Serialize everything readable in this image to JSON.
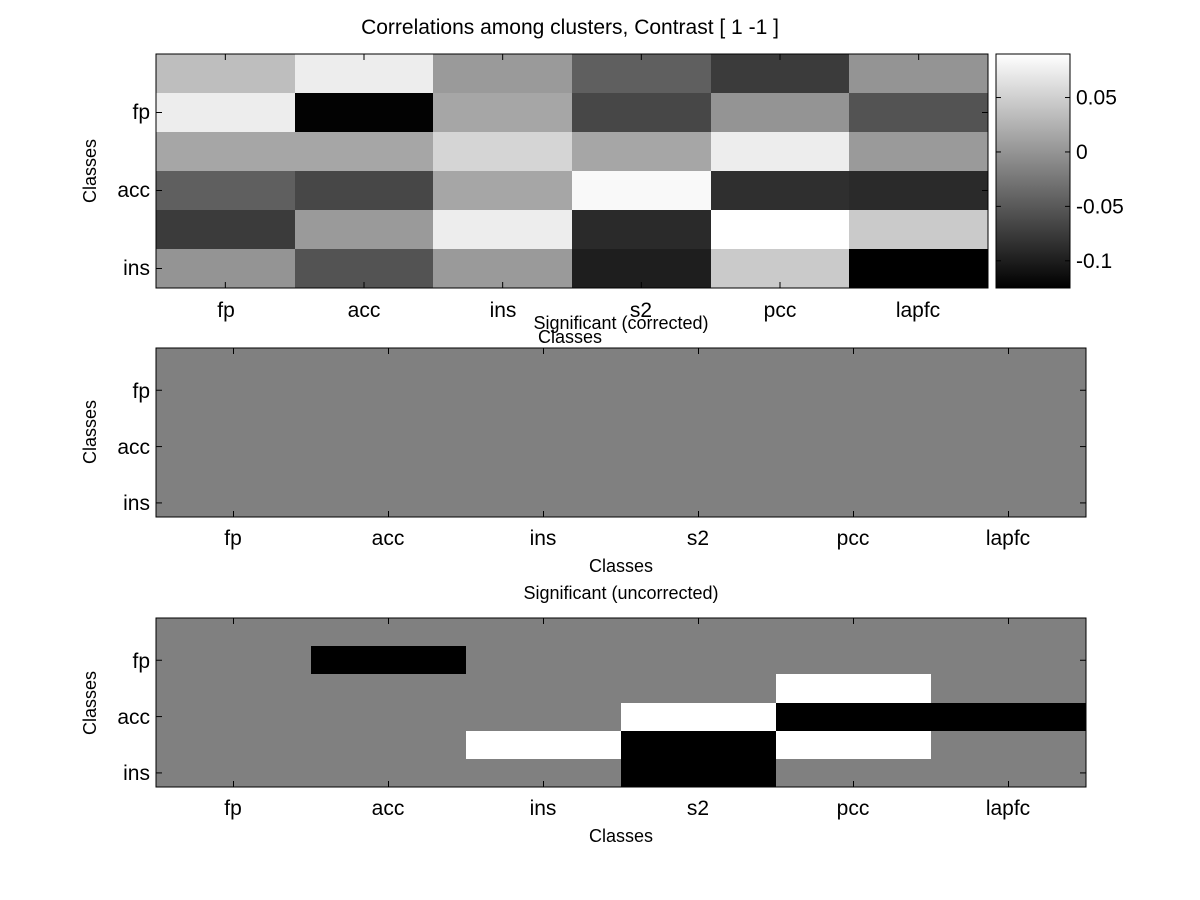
{
  "chart_data": [
    {
      "type": "heatmap",
      "title": "Correlations among clusters, Contrast [ 1 -1 ]",
      "xlabel": "Classes",
      "ylabel": "Classes",
      "x_ticks": [
        "fp",
        "acc",
        "ins",
        "s2",
        "pcc",
        "lapfc"
      ],
      "y_ticks": [
        "fp",
        "acc",
        "ins"
      ],
      "rows": 6,
      "cols": 6,
      "values": [
        [
          0.035,
          0.075,
          0.005,
          -0.045,
          -0.075,
          0.0
        ],
        [
          0.075,
          -0.123,
          0.015,
          -0.065,
          0.0,
          -0.055
        ],
        [
          0.015,
          0.015,
          0.055,
          0.015,
          0.075,
          0.005
        ],
        [
          -0.045,
          -0.065,
          0.015,
          0.085,
          -0.085,
          -0.09
        ],
        [
          -0.075,
          0.005,
          0.075,
          -0.09,
          0.09,
          0.045
        ],
        [
          0.0,
          -0.055,
          0.005,
          -0.1,
          0.045,
          -0.125
        ]
      ],
      "colorbar": {
        "range": [
          -0.125,
          0.09
        ],
        "ticks": [
          0.05,
          0,
          -0.05,
          -0.1
        ],
        "tick_labels": [
          "0.05",
          "0",
          "-0.05",
          "-0.1"
        ]
      },
      "colormap": "gray"
    },
    {
      "type": "heatmap",
      "title": "Significant (corrected)",
      "xlabel": "Classes",
      "ylabel": "Classes",
      "x_ticks": [
        "fp",
        "acc",
        "ins",
        "s2",
        "pcc",
        "lapfc"
      ],
      "y_ticks": [
        "fp",
        "acc",
        "ins"
      ],
      "rows": 6,
      "cols": 6,
      "values": [
        [
          0,
          0,
          0,
          0,
          0,
          0
        ],
        [
          0,
          0,
          0,
          0,
          0,
          0
        ],
        [
          0,
          0,
          0,
          0,
          0,
          0
        ],
        [
          0,
          0,
          0,
          0,
          0,
          0
        ],
        [
          0,
          0,
          0,
          0,
          0,
          0
        ],
        [
          0,
          0,
          0,
          0,
          0,
          0
        ]
      ],
      "colormap": "gray"
    },
    {
      "type": "heatmap",
      "title": "Significant (uncorrected)",
      "xlabel": "Classes",
      "ylabel": "Classes",
      "x_ticks": [
        "fp",
        "acc",
        "ins",
        "s2",
        "pcc",
        "lapfc"
      ],
      "y_ticks": [
        "fp",
        "acc",
        "ins"
      ],
      "rows": 6,
      "cols": 6,
      "values": [
        [
          0,
          0,
          0,
          0,
          0,
          0
        ],
        [
          0,
          -1,
          0,
          0,
          0,
          0
        ],
        [
          0,
          0,
          0,
          0,
          1,
          0
        ],
        [
          0,
          0,
          0,
          1,
          -1,
          -1
        ],
        [
          0,
          0,
          1,
          -1,
          1,
          0
        ],
        [
          0,
          0,
          0,
          -1,
          0,
          0
        ]
      ],
      "colormap": "gray"
    }
  ]
}
